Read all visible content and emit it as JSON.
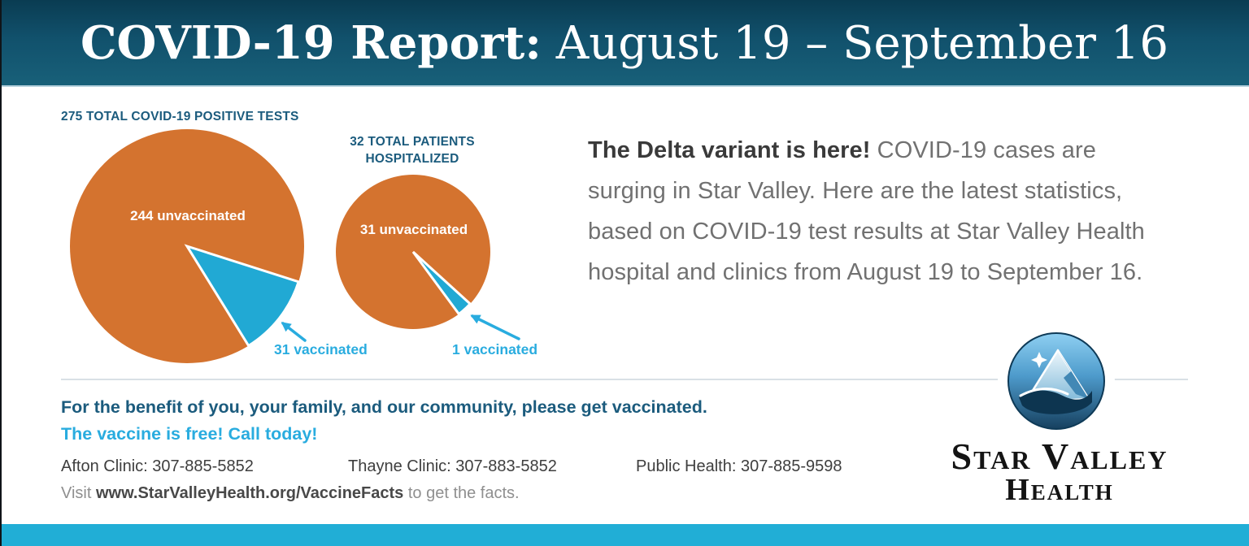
{
  "header": {
    "title_bold": "COVID-19 Report:",
    "title_regular": " August 19 – September 16"
  },
  "chart_data": [
    {
      "type": "pie",
      "title": "275 TOTAL COVID-19 POSITIVE TESTS",
      "total": 275,
      "series": [
        {
          "name": "unvaccinated",
          "value": 244,
          "color": "#d4732f",
          "label": "244 unvaccinated"
        },
        {
          "name": "vaccinated",
          "value": 31,
          "color": "#21a9d4",
          "label": "31 vaccinated"
        }
      ],
      "vaccinated_slice_mid_angle_deg": 128,
      "legend_position": "callout-arrow"
    },
    {
      "type": "pie",
      "title": "32 TOTAL PATIENTS HOSPITALIZED",
      "title_display": "32 TOTAL PATIENTS\nHOSPITALIZED",
      "total": 32,
      "series": [
        {
          "name": "unvaccinated",
          "value": 31,
          "color": "#d4732f",
          "label": "31 unvaccinated"
        },
        {
          "name": "vaccinated",
          "value": 1,
          "color": "#21a9d4",
          "label": "1 vaccinated"
        }
      ],
      "vaccinated_slice_mid_angle_deg": 138,
      "legend_position": "callout-arrow"
    }
  ],
  "main_text": {
    "lead": "The Delta variant is here!",
    "body": " COVID-19 cases are surging in Star Valley. Here are the latest statistics, based on COVID-19 test results at Star Valley Health hospital and clinics from August 19 to September 16."
  },
  "footer": {
    "cta_line1": "For the benefit of you, your family, and our community, please get vaccinated.",
    "cta_line2": "The vaccine is free! Call today!",
    "contacts": [
      {
        "label": "Afton Clinic:",
        "phone": "307-885-5852"
      },
      {
        "label": "Thayne Clinic:",
        "phone": "307-883-5852"
      },
      {
        "label": "Public Health:",
        "phone": "307-885-9598"
      }
    ],
    "visit_prefix": "Visit ",
    "visit_url": "www.StarValleyHealth.org/VaccineFacts",
    "visit_suffix": " to get the facts."
  },
  "logo": {
    "name_line1": "Star Valley",
    "name_line2": "Health"
  },
  "colors": {
    "header_teal_top": "#0a3c52",
    "header_teal_bottom": "#186079",
    "accent_orange": "#d4732f",
    "accent_blue_slice": "#21a9d4",
    "accent_blue_text": "#29acdf",
    "dark_teal_text": "#1b5b7d",
    "bottom_bar_blue": "#21aed6"
  }
}
